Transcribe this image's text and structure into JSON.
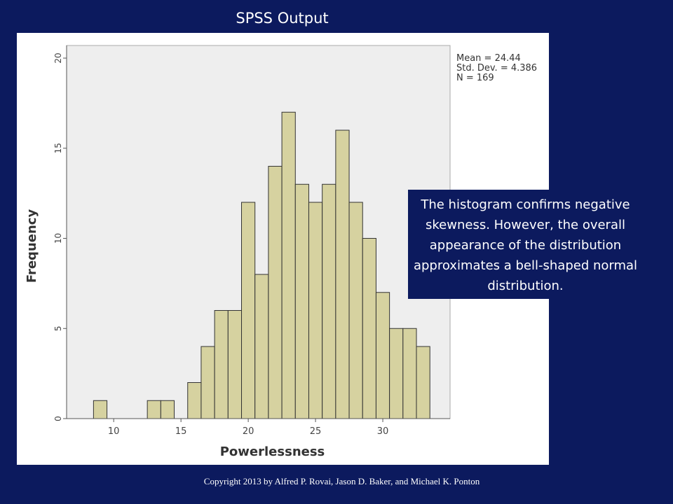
{
  "slide": {
    "title": "SPSS Output",
    "note": "The histogram confirms negative skewness. However, the overall appearance of the distribution approximates a bell-shaped normal distribution.",
    "copyright": "Copyright 2013 by Alfred P. Rovai, Jason D. Baker, and Michael K. Ponton"
  },
  "colors": {
    "background": "#0c1a5e",
    "bar_fill": "#d6d2a0",
    "plot_bg": "#eeeeee",
    "bar_stroke": "#333333"
  },
  "chart_data": {
    "type": "bar",
    "title": "",
    "xlabel": "Powerlessness",
    "ylabel": "Frequency",
    "xlim": [
      6.5,
      35
    ],
    "ylim": [
      0,
      20.7
    ],
    "grid": false,
    "bin_width": 1,
    "bins": [
      {
        "start": 8.5,
        "count": 1
      },
      {
        "start": 9.5,
        "count": 0
      },
      {
        "start": 10.5,
        "count": 0
      },
      {
        "start": 11.5,
        "count": 0
      },
      {
        "start": 12.5,
        "count": 1
      },
      {
        "start": 13.5,
        "count": 1
      },
      {
        "start": 14.5,
        "count": 0
      },
      {
        "start": 15.5,
        "count": 2
      },
      {
        "start": 16.5,
        "count": 4
      },
      {
        "start": 17.5,
        "count": 6
      },
      {
        "start": 18.5,
        "count": 6
      },
      {
        "start": 19.5,
        "count": 12
      },
      {
        "start": 20.5,
        "count": 8
      },
      {
        "start": 21.5,
        "count": 14
      },
      {
        "start": 22.5,
        "count": 17
      },
      {
        "start": 23.5,
        "count": 13
      },
      {
        "start": 24.5,
        "count": 12
      },
      {
        "start": 25.5,
        "count": 13
      },
      {
        "start": 26.5,
        "count": 16
      },
      {
        "start": 27.5,
        "count": 12
      },
      {
        "start": 28.5,
        "count": 10
      },
      {
        "start": 29.5,
        "count": 7
      },
      {
        "start": 30.5,
        "count": 5
      },
      {
        "start": 31.5,
        "count": 5
      },
      {
        "start": 32.5,
        "count": 4
      }
    ],
    "x_ticks": [
      10,
      15,
      20,
      25,
      30
    ],
    "y_ticks": [
      0,
      5,
      10,
      15,
      20
    ],
    "stats": {
      "mean": "Mean = 24.44",
      "std_dev": "Std. Dev. = 4.386",
      "n": "N = 169"
    }
  }
}
